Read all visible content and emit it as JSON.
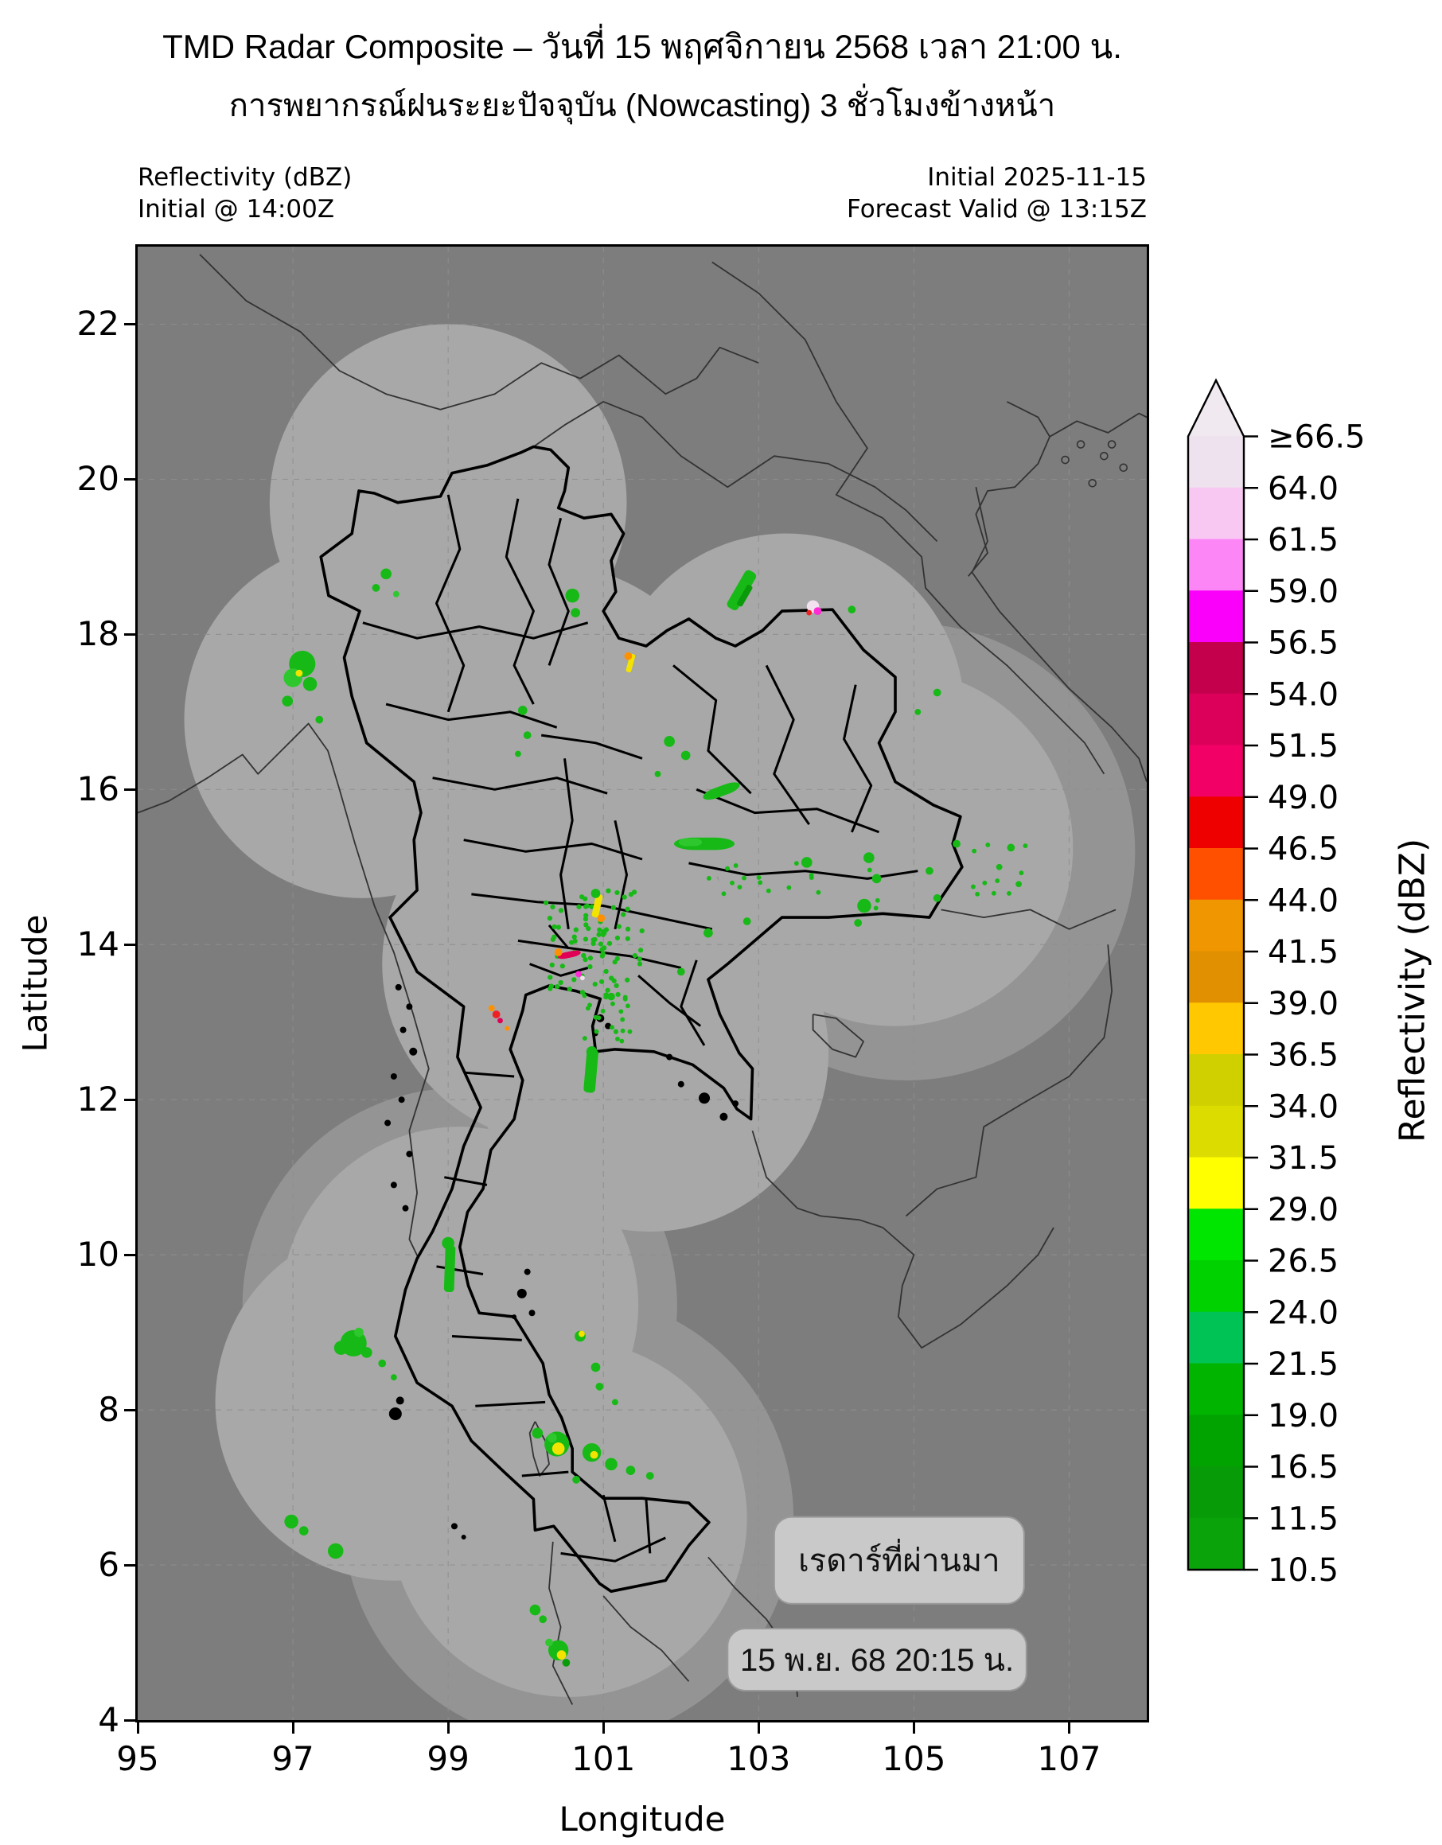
{
  "title": "TMD Radar Composite – วันที่ 15 พฤศจิกายน 2568 เวลา 21:00 น.",
  "subtitle": "การพยากรณ์ฝนระยะปัจจุบัน (Nowcasting) 3 ชั่วโมงข้างหน้า",
  "header": {
    "left_line1": "Reflectivity (dBZ)",
    "left_line2": "Initial @ 14:00Z",
    "right_line1": "Initial 2025-11-15",
    "right_line2": "Forecast Valid @ 13:15Z"
  },
  "axes": {
    "xlabel": "Longitude",
    "ylabel": "Latitude",
    "x_ticks": [
      95,
      97,
      99,
      101,
      103,
      105,
      107
    ],
    "y_ticks": [
      22,
      20,
      18,
      16,
      14,
      12,
      10,
      8,
      6,
      4
    ],
    "lon_range": [
      95,
      108
    ],
    "lat_range": [
      4,
      23
    ],
    "grid": "dashed"
  },
  "colorbar": {
    "label": "Reflectivity (dBZ)",
    "tick_labels": [
      "≥66.5",
      "64.0",
      "61.5",
      "59.0",
      "56.5",
      "54.0",
      "51.5",
      "49.0",
      "46.5",
      "44.0",
      "41.5",
      "39.0",
      "36.5",
      "34.0",
      "31.5",
      "29.0",
      "26.5",
      "24.0",
      "21.5",
      "19.0",
      "16.5",
      "11.5",
      "10.5"
    ],
    "segments_top_to_bottom": [
      "#eee2ee",
      "#f9c8f2",
      "#fd86f7",
      "#fa00fa",
      "#c4004c",
      "#dc005a",
      "#f20066",
      "#ee0000",
      "#ff5000",
      "#f09600",
      "#e09000",
      "#ffc800",
      "#d0d000",
      "#dcdc00",
      "#ffff00",
      "#00e600",
      "#00d200",
      "#00c355",
      "#00b400",
      "#01a301",
      "#089b08",
      "#0aa30a"
    ],
    "arrow_color": "#f0e9f0"
  },
  "map": {
    "colors": {
      "background": "#7d7d7d",
      "coverage": "#a8a8a8",
      "coverage_outer": "#949494",
      "grid": "#8f8f8f",
      "border_thick": "#000000",
      "border_thin": "#333333",
      "box_fill": "#c9c9c9",
      "box_stroke": "#999999",
      "box_text": "#111111"
    },
    "coverage_circles": [
      {
        "lon": 99.0,
        "lat": 19.7,
        "r": 2.3
      },
      {
        "lon": 97.9,
        "lat": 16.9,
        "r": 2.3
      },
      {
        "lon": 100.3,
        "lat": 16.6,
        "r": 2.3
      },
      {
        "lon": 103.35,
        "lat": 17.0,
        "r": 2.3
      },
      {
        "lon": 104.75,
        "lat": 15.25,
        "r": 2.3
      },
      {
        "lon": 100.45,
        "lat": 13.75,
        "r": 2.3
      },
      {
        "lon": 101.6,
        "lat": 12.6,
        "r": 2.3
      },
      {
        "lon": 99.15,
        "lat": 9.35,
        "r": 2.3
      },
      {
        "lon": 98.3,
        "lat": 8.1,
        "r": 2.3
      },
      {
        "lon": 100.55,
        "lat": 6.6,
        "r": 2.3
      }
    ],
    "outer_circles": [
      {
        "lon": 104.9,
        "lat": 15.2,
        "r": 2.95
      },
      {
        "lon": 100.55,
        "lat": 6.6,
        "r": 2.9
      },
      {
        "lon": 99.15,
        "lat": 9.35,
        "r": 2.8
      }
    ],
    "echo_palette": {
      "g1": "#2ec82e",
      "g2": "#17b917",
      "g3": "#0a9b0a",
      "y": "#f2e400",
      "gold": "#ffc800",
      "o": "#ff9100",
      "r": "#ee2222",
      "cr": "#e00055",
      "mg": "#ff2ad4",
      "pk": "#f2e2f0"
    },
    "echo_circles": [
      [
        97.12,
        17.62,
        0.17,
        "g2"
      ],
      [
        97.0,
        17.44,
        0.12,
        "g1"
      ],
      [
        97.22,
        17.36,
        0.09,
        "g2"
      ],
      [
        96.93,
        17.14,
        0.07,
        "g2"
      ],
      [
        97.34,
        16.9,
        0.05,
        "g2"
      ],
      [
        97.08,
        17.5,
        0.045,
        "y"
      ],
      [
        98.2,
        18.78,
        0.07,
        "g2"
      ],
      [
        98.07,
        18.6,
        0.05,
        "g2"
      ],
      [
        98.33,
        18.52,
        0.04,
        "g1"
      ],
      [
        100.6,
        18.5,
        0.09,
        "g2"
      ],
      [
        100.64,
        18.28,
        0.06,
        "g2"
      ],
      [
        103.7,
        18.36,
        0.08,
        "pk"
      ],
      [
        103.76,
        18.3,
        0.05,
        "mg"
      ],
      [
        103.65,
        18.28,
        0.035,
        "r"
      ],
      [
        104.2,
        18.32,
        0.05,
        "g2"
      ],
      [
        101.32,
        17.72,
        0.05,
        "o"
      ],
      [
        99.96,
        17.02,
        0.06,
        "g2"
      ],
      [
        100.02,
        16.7,
        0.05,
        "g2"
      ],
      [
        99.9,
        16.46,
        0.04,
        "g2"
      ],
      [
        101.85,
        16.62,
        0.07,
        "g2"
      ],
      [
        102.06,
        16.44,
        0.06,
        "g2"
      ],
      [
        101.7,
        16.2,
        0.04,
        "g2"
      ],
      [
        103.62,
        15.06,
        0.07,
        "g2"
      ],
      [
        104.42,
        15.12,
        0.07,
        "g2"
      ],
      [
        104.52,
        14.85,
        0.06,
        "g2"
      ],
      [
        104.36,
        14.5,
        0.09,
        "g2"
      ],
      [
        104.28,
        14.28,
        0.05,
        "g2"
      ],
      [
        105.2,
        14.95,
        0.05,
        "g2"
      ],
      [
        105.3,
        14.6,
        0.05,
        "g2"
      ],
      [
        105.55,
        15.3,
        0.05,
        "g2"
      ],
      [
        106.1,
        15.0,
        0.04,
        "g2"
      ],
      [
        106.35,
        14.78,
        0.04,
        "g2"
      ],
      [
        106.25,
        15.25,
        0.05,
        "g2"
      ],
      [
        105.3,
        17.25,
        0.05,
        "g2"
      ],
      [
        105.05,
        17.0,
        0.04,
        "g2"
      ],
      [
        100.9,
        14.66,
        0.06,
        "g2"
      ],
      [
        100.97,
        14.34,
        0.05,
        "o"
      ],
      [
        100.42,
        13.9,
        0.05,
        "o"
      ],
      [
        100.68,
        13.62,
        0.04,
        "mg"
      ],
      [
        100.73,
        13.57,
        0.03,
        "pk"
      ],
      [
        99.56,
        13.18,
        0.04,
        "o"
      ],
      [
        99.62,
        13.1,
        0.05,
        "r"
      ],
      [
        99.67,
        13.02,
        0.035,
        "cr"
      ],
      [
        99.76,
        12.92,
        0.03,
        "o"
      ],
      [
        100.85,
        12.62,
        0.07,
        "g2"
      ],
      [
        101.1,
        13.33,
        0.05,
        "g2"
      ],
      [
        102.35,
        14.15,
        0.06,
        "g2"
      ],
      [
        102.85,
        14.3,
        0.05,
        "g2"
      ],
      [
        102.0,
        13.65,
        0.05,
        "g2"
      ],
      [
        99.0,
        10.15,
        0.08,
        "g2"
      ],
      [
        97.78,
        8.86,
        0.17,
        "g2"
      ],
      [
        97.62,
        8.8,
        0.09,
        "g2"
      ],
      [
        97.95,
        8.74,
        0.07,
        "g2"
      ],
      [
        98.15,
        8.6,
        0.05,
        "g2"
      ],
      [
        97.85,
        9.0,
        0.06,
        "g1"
      ],
      [
        98.3,
        8.42,
        0.04,
        "g2"
      ],
      [
        96.98,
        6.56,
        0.09,
        "g2"
      ],
      [
        97.14,
        6.44,
        0.06,
        "g2"
      ],
      [
        97.55,
        6.18,
        0.1,
        "g2"
      ],
      [
        100.4,
        7.56,
        0.16,
        "g2"
      ],
      [
        100.42,
        7.5,
        0.08,
        "y"
      ],
      [
        100.34,
        7.64,
        0.06,
        "g1"
      ],
      [
        100.15,
        7.7,
        0.07,
        "g2"
      ],
      [
        100.85,
        7.45,
        0.12,
        "g2"
      ],
      [
        100.88,
        7.42,
        0.05,
        "y"
      ],
      [
        101.1,
        7.3,
        0.08,
        "g2"
      ],
      [
        101.35,
        7.22,
        0.06,
        "g2"
      ],
      [
        100.65,
        7.1,
        0.05,
        "g2"
      ],
      [
        101.6,
        7.15,
        0.05,
        "g2"
      ],
      [
        100.7,
        8.95,
        0.07,
        "g2"
      ],
      [
        100.72,
        8.98,
        0.04,
        "y"
      ],
      [
        100.9,
        8.55,
        0.06,
        "g2"
      ],
      [
        100.95,
        8.3,
        0.05,
        "g2"
      ],
      [
        101.15,
        8.1,
        0.04,
        "g2"
      ],
      [
        100.12,
        5.42,
        0.07,
        "g2"
      ],
      [
        100.22,
        5.3,
        0.05,
        "g2"
      ],
      [
        100.42,
        4.9,
        0.13,
        "g2"
      ],
      [
        100.46,
        4.84,
        0.06,
        "y"
      ],
      [
        100.52,
        4.74,
        0.05,
        "g3"
      ],
      [
        100.3,
        5.0,
        0.05,
        "g1"
      ]
    ],
    "echo_rects": [
      [
        102.78,
        18.57,
        0.16,
        0.55,
        30,
        "g2"
      ],
      [
        102.82,
        18.5,
        0.08,
        0.3,
        30,
        "g3"
      ],
      [
        101.35,
        17.63,
        0.07,
        0.24,
        15,
        "y"
      ],
      [
        102.52,
        15.98,
        0.5,
        0.13,
        -20,
        "g2"
      ],
      [
        102.3,
        15.3,
        0.78,
        0.16,
        0,
        "g2"
      ],
      [
        102.12,
        15.32,
        0.3,
        0.1,
        0,
        "g1"
      ],
      [
        100.92,
        14.5,
        0.09,
        0.3,
        12,
        "y"
      ],
      [
        100.56,
        13.87,
        0.3,
        0.08,
        -12,
        "cr"
      ],
      [
        100.84,
        12.37,
        0.15,
        0.56,
        5,
        "g2"
      ],
      [
        99.02,
        9.82,
        0.13,
        0.6,
        2,
        "g2"
      ]
    ],
    "speckle_fields": [
      {
        "lon0": 100.25,
        "lon1": 101.5,
        "lat0": 13.35,
        "lat1": 14.7,
        "n": 85,
        "r": 0.032,
        "color": "g2",
        "seed": 11
      },
      {
        "lon0": 100.7,
        "lon1": 101.35,
        "lat0": 12.75,
        "lat1": 13.35,
        "n": 22,
        "r": 0.03,
        "color": "g2",
        "seed": 23
      },
      {
        "lon0": 102.3,
        "lon1": 104.6,
        "lat0": 14.3,
        "lat1": 15.05,
        "n": 18,
        "r": 0.03,
        "color": "g2",
        "seed": 37
      },
      {
        "lon0": 105.7,
        "lon1": 106.5,
        "lat0": 14.6,
        "lat1": 15.3,
        "n": 10,
        "r": 0.03,
        "color": "g2",
        "seed": 51
      }
    ],
    "overlay_boxes": [
      {
        "label": "เรดาร์ที่ผ่านมา",
        "lon0": 103.2,
        "lat_top": 6.62,
        "lon1": 106.42,
        "lat_bot": 5.5
      },
      {
        "label": "15 พ.ย. 68 20:15 น.",
        "lon0": 102.6,
        "lat_top": 5.18,
        "lon1": 106.45,
        "lat_bot": 4.38
      }
    ]
  }
}
